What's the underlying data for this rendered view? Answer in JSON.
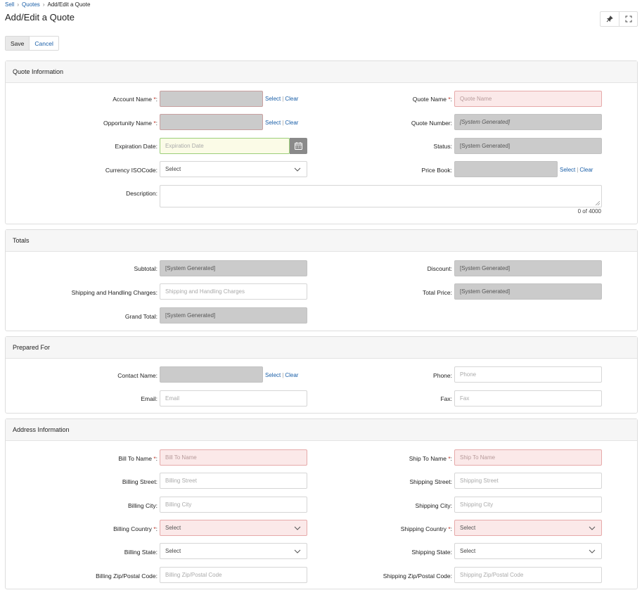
{
  "breadcrumb": {
    "sell": "Sell",
    "quotes": "Quotes",
    "current": "Add/Edit a Quote"
  },
  "page_title": "Add/Edit a Quote",
  "icons": {
    "pin": "pin-icon",
    "expand": "expand-icon",
    "calendar": "calendar-icon",
    "chevron": "chevron-down-icon"
  },
  "actions": {
    "save": "Save",
    "cancel": "Cancel"
  },
  "lookup": {
    "select": "Select",
    "clear": "Clear"
  },
  "colors": {
    "link": "#1a5fa8",
    "required_bg": "#fbe9e9",
    "readonly_bg": "#cbcbcb"
  },
  "quote_info": {
    "title": "Quote Information",
    "account_name": "Account Name",
    "opportunity_name": "Opportunity Name",
    "expiration_date": "Expiration Date:",
    "expiration_placeholder": "Expiration Date",
    "currency": "Currency ISOCode:",
    "currency_value": "Select",
    "description": "Description:",
    "counter": "0 of 4000",
    "quote_name": "Quote Name",
    "quote_name_placeholder": "Quote Name",
    "quote_number": "Quote Number:",
    "quote_number_value": "[System Generated]",
    "status": "Status:",
    "status_value": "[System Generated]",
    "price_book": "Price Book:"
  },
  "totals": {
    "title": "Totals",
    "subtotal": "Subtotal:",
    "subtotal_value": "[System Generated]",
    "shipping": "Shipping and Handling Charges:",
    "shipping_placeholder": "Shipping and Handling Charges",
    "grand_total": "Grand Total:",
    "grand_total_value": "[System Generated]",
    "discount": "Discount:",
    "discount_value": "[System Generated]",
    "total_price": "Total Price:",
    "total_price_value": "[System Generated]"
  },
  "prepared_for": {
    "title": "Prepared For",
    "contact_name": "Contact Name:",
    "email": "Email:",
    "email_placeholder": "Email",
    "phone": "Phone:",
    "phone_placeholder": "Phone",
    "fax": "Fax:",
    "fax_placeholder": "Fax"
  },
  "address": {
    "title": "Address Information",
    "bill_to_name": "Bill To Name",
    "bill_to_name_placeholder": "Bill To Name",
    "billing_street": "Billing Street:",
    "billing_street_placeholder": "Billing Street",
    "billing_city": "Billing City:",
    "billing_city_placeholder": "Billing City",
    "billing_country": "Billing Country",
    "billing_country_value": "Select",
    "billing_state": "Billing State:",
    "billing_state_value": "Select",
    "billing_zip": "Billing Zip/Postal Code:",
    "billing_zip_placeholder": "Billing Zip/Postal Code",
    "ship_to_name": "Ship To Name",
    "ship_to_name_placeholder": "Ship To Name",
    "shipping_street": "Shipping Street:",
    "shipping_street_placeholder": "Shipping Street",
    "shipping_city": "Shipping City:",
    "shipping_city_placeholder": "Shipping  City",
    "shipping_country": "Shipping Country",
    "shipping_country_value": "Select",
    "shipping_state": "Shipping State:",
    "shipping_state_value": "Select",
    "shipping_zip": "Shipping Zip/Postal Code:",
    "shipping_zip_placeholder": "Shipping Zip/Postal Code"
  }
}
